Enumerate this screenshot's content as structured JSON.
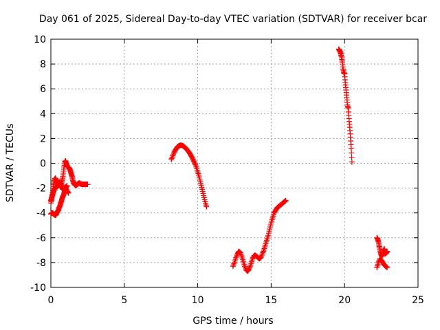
{
  "chart_data": {
    "type": "scatter",
    "title": "Day 061 of 2025, Sidereal Day-to-day VTEC variation (SDTVAR) for receiver bcar",
    "xlabel": "GPS time / hours",
    "ylabel": "SDTVAR / TECUs",
    "xlim": [
      0,
      25
    ],
    "ylim": [
      -10,
      10
    ],
    "x_ticks": [
      "0",
      "5",
      "10",
      "15",
      "20",
      "25"
    ],
    "y_ticks": [
      "-10",
      "-8",
      "-6",
      "-4",
      "-2",
      "0",
      "2",
      "4",
      "6",
      "8",
      "10"
    ],
    "grid": true,
    "legend": "none",
    "marker": "plus",
    "color": "#ff0000",
    "series": [
      {
        "x": [
          0.0,
          0.05,
          0.1,
          0.15,
          0.2,
          0.25,
          0.3,
          0.35,
          0.4,
          0.45,
          0.5,
          0.55,
          0.6,
          0.65,
          0.7,
          0.75,
          0.8,
          0.85,
          0.9,
          0.95,
          1.0,
          1.05,
          1.1,
          1.15,
          1.2,
          1.25,
          1.3,
          1.35,
          1.4,
          1.45,
          1.5,
          1.55,
          1.6,
          1.65,
          1.7,
          1.75,
          1.8,
          1.85,
          1.9,
          1.95,
          2.0,
          2.1,
          2.2,
          2.3,
          2.4,
          2.5
        ],
        "y": [
          -3.2,
          -2.9,
          -2.5,
          -2.0,
          -1.6,
          -1.3,
          -1.2,
          -1.3,
          -1.5,
          -1.7,
          -1.8,
          -1.6,
          -1.5,
          -1.6,
          -1.8,
          -1.5,
          -1.2,
          -0.8,
          -0.3,
          0.1,
          0.2,
          0.0,
          -0.2,
          -0.3,
          -0.3,
          -0.4,
          -0.5,
          -0.7,
          -0.9,
          -1.1,
          -1.4,
          -1.6,
          -1.7,
          -1.75,
          -1.8,
          -1.75,
          -1.7,
          -1.65,
          -1.6,
          -1.6,
          -1.65,
          -1.7,
          -1.7,
          -1.7,
          -1.7,
          -1.7
        ]
      },
      {
        "x": [
          0.0,
          0.05,
          0.1,
          0.15,
          0.2,
          0.25,
          0.3,
          0.35,
          0.4,
          0.45,
          0.5,
          0.55,
          0.6,
          0.65,
          0.7,
          0.75,
          0.8,
          0.85,
          0.9,
          0.95,
          1.0,
          1.05,
          1.1
        ],
        "y": [
          -4.1,
          -4.0,
          -4.0,
          -4.05,
          -4.1,
          -4.15,
          -4.2,
          -4.15,
          -4.0,
          -3.9,
          -3.8,
          -3.6,
          -3.5,
          -3.3,
          -3.1,
          -2.9,
          -2.7,
          -2.6,
          -2.4,
          -2.2,
          -2.0,
          -1.9,
          -1.8
        ]
      },
      {
        "x": [
          0.0,
          0.05,
          0.1,
          0.15,
          0.2,
          0.25,
          0.3,
          0.4,
          0.5,
          0.6,
          0.7,
          0.8,
          0.9,
          1.0,
          1.1,
          1.2
        ],
        "y": [
          -3.0,
          -2.8,
          -2.6,
          -2.4,
          -2.2,
          -2.1,
          -2.0,
          -1.9,
          -1.8,
          -1.7,
          -1.9,
          -2.1,
          -2.0,
          -1.9,
          -2.2,
          -2.4
        ]
      },
      {
        "x": [
          8.2,
          8.3,
          8.4,
          8.5,
          8.6,
          8.7,
          8.8,
          8.9,
          9.0,
          9.1,
          9.2,
          9.3,
          9.4,
          9.5,
          9.6,
          9.7,
          9.8,
          9.9,
          10.0,
          10.1,
          10.2,
          10.3,
          10.4,
          10.5,
          10.6
        ],
        "y": [
          0.3,
          0.6,
          0.9,
          1.1,
          1.3,
          1.4,
          1.45,
          1.45,
          1.4,
          1.3,
          1.2,
          1.05,
          0.9,
          0.7,
          0.5,
          0.25,
          0.0,
          -0.3,
          -0.7,
          -1.1,
          -1.6,
          -2.1,
          -2.6,
          -3.1,
          -3.5
        ]
      },
      {
        "x": [
          12.4,
          12.5,
          12.6,
          12.7,
          12.8,
          12.9,
          13.0,
          13.1,
          13.2,
          13.3,
          13.4,
          13.5,
          13.6,
          13.7,
          13.8,
          13.9,
          14.0,
          14.1,
          14.2,
          14.3,
          14.4,
          14.5,
          14.6,
          14.7,
          14.8,
          14.9,
          15.0,
          15.1,
          15.2,
          15.3,
          15.4,
          15.5,
          15.6,
          15.7,
          15.8,
          15.9,
          16.0
        ],
        "y": [
          -8.3,
          -8.0,
          -7.6,
          -7.3,
          -7.1,
          -7.2,
          -7.5,
          -7.9,
          -8.3,
          -8.6,
          -8.7,
          -8.5,
          -8.2,
          -7.8,
          -7.5,
          -7.4,
          -7.5,
          -7.6,
          -7.7,
          -7.6,
          -7.3,
          -7.0,
          -6.6,
          -6.2,
          -5.8,
          -5.3,
          -4.8,
          -4.4,
          -4.0,
          -3.8,
          -3.6,
          -3.5,
          -3.4,
          -3.3,
          -3.2,
          -3.1,
          -3.0
        ]
      },
      {
        "x": [
          19.6,
          19.65,
          19.7,
          19.75,
          19.8,
          19.85,
          19.9,
          19.95,
          20.0,
          20.05,
          20.1,
          20.15,
          20.2,
          20.25,
          20.3,
          20.35,
          20.4,
          20.45,
          20.5
        ],
        "y": [
          9.2,
          9.1,
          9.0,
          8.8,
          8.5,
          8.1,
          7.6,
          7.3,
          7.2,
          6.5,
          5.9,
          5.3,
          4.7,
          4.4,
          3.6,
          2.9,
          2.1,
          1.2,
          0.1
        ]
      },
      {
        "x": [
          22.2,
          22.25,
          22.3,
          22.35,
          22.4,
          22.45,
          22.5,
          22.55,
          22.6,
          22.65,
          22.7,
          22.75,
          22.8,
          22.85,
          22.9
        ],
        "y": [
          -6.0,
          -6.1,
          -6.3,
          -6.6,
          -6.9,
          -7.2,
          -7.4,
          -7.5,
          -7.3,
          -7.0,
          -6.9,
          -7.1,
          -7.3,
          -7.2,
          -7.1
        ]
      },
      {
        "x": [
          22.2,
          22.3,
          22.4,
          22.5,
          22.6,
          22.7,
          22.8,
          22.9
        ],
        "y": [
          -8.4,
          -8.0,
          -7.7,
          -7.8,
          -8.0,
          -8.2,
          -8.3,
          -8.4
        ]
      }
    ]
  }
}
